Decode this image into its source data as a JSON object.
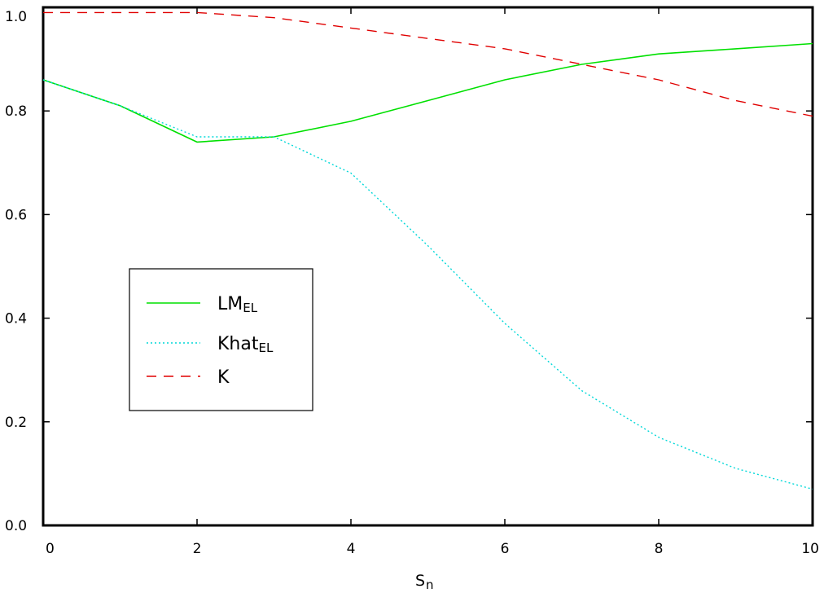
{
  "chart_data": {
    "type": "line",
    "title": "",
    "xlabel": "S",
    "xlabel_subscript": "n",
    "ylabel": "",
    "xlim": [
      0,
      10
    ],
    "ylim": [
      0,
      1
    ],
    "x_ticks": [
      "0",
      "2",
      "4",
      "6",
      "8",
      "10"
    ],
    "y_ticks": [
      "0.0",
      "0.2",
      "0.4",
      "0.6",
      "0.8",
      "1.0"
    ],
    "grid": false,
    "legend_position": "center-left",
    "x": [
      0,
      1,
      2,
      3,
      4,
      5,
      6,
      7,
      8,
      9,
      10
    ],
    "series": [
      {
        "name": "LM",
        "name_subscript": "EL",
        "color": "#00e000",
        "style": "solid",
        "values": [
          0.86,
          0.81,
          0.74,
          0.75,
          0.78,
          0.82,
          0.86,
          0.89,
          0.91,
          0.92,
          0.93
        ]
      },
      {
        "name": "Khat",
        "name_subscript": "EL",
        "color": "#00d8d8",
        "style": "dotted",
        "values": [
          0.86,
          0.81,
          0.75,
          0.75,
          0.68,
          0.54,
          0.39,
          0.26,
          0.17,
          0.11,
          0.07
        ]
      },
      {
        "name": "K",
        "name_subscript": "",
        "color": "#e00000",
        "style": "dashed",
        "values": [
          0.99,
          0.99,
          0.99,
          0.98,
          0.96,
          0.94,
          0.92,
          0.89,
          0.86,
          0.82,
          0.79
        ]
      }
    ]
  }
}
